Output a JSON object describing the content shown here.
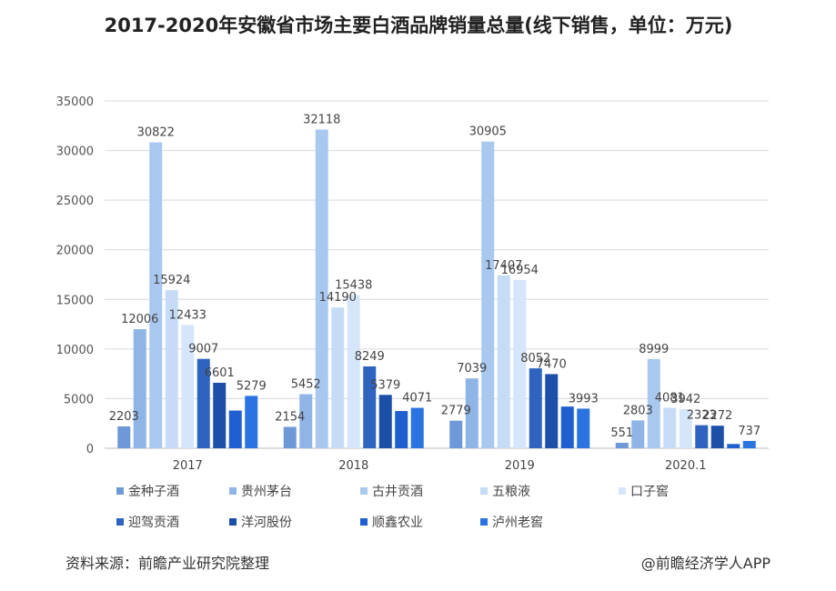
{
  "chart_data": {
    "type": "bar",
    "title": "2017-2020年安徽省市场主要白酒品牌销量总量(线下销售，单位：万元)",
    "categories": [
      "2017",
      "2018",
      "2019",
      "2020.1"
    ],
    "ylim": [
      0,
      35000
    ],
    "yticks": [
      0,
      5000,
      10000,
      15000,
      20000,
      25000,
      30000,
      35000
    ],
    "grid": true,
    "legend_position": "bottom",
    "series": [
      {
        "name": "金种子酒",
        "color": "#6e98d8",
        "values": [
          2203,
          2154,
          2779,
          551
        ],
        "labels": [
          "2203",
          "2154",
          "2779",
          "551"
        ]
      },
      {
        "name": "贵州茅台",
        "color": "#8fb4e6",
        "values": [
          12006,
          5452,
          7039,
          2803
        ],
        "labels": [
          "12006",
          "5452",
          "7039",
          "2803"
        ]
      },
      {
        "name": "古井贡酒",
        "color": "#a9c8f0",
        "values": [
          30822,
          32118,
          30905,
          8999
        ],
        "labels": [
          "30822",
          "32118",
          "30905",
          "8999"
        ]
      },
      {
        "name": "五粮液",
        "color": "#c6dcf6",
        "values": [
          15924,
          14190,
          17407,
          4081
        ],
        "labels": [
          "15924",
          "14190",
          "17407",
          "4081"
        ]
      },
      {
        "name": "口子窖",
        "color": "#d6e6fa",
        "values": [
          12433,
          15438,
          16954,
          3942
        ],
        "labels": [
          "12433",
          "15438",
          "16954",
          "3942"
        ]
      },
      {
        "name": "迎驾贡酒",
        "color": "#2e64c0",
        "values": [
          9007,
          8249,
          8052,
          2323
        ],
        "labels": [
          "9007",
          "8249",
          "8052",
          "2323"
        ]
      },
      {
        "name": "洋河股份",
        "color": "#1c4fa8",
        "values": [
          6601,
          5379,
          7470,
          2272
        ],
        "labels": [
          "6601",
          "5379",
          "7470",
          "2272"
        ]
      },
      {
        "name": "顺鑫农业",
        "color": "#1f5fd0",
        "values": [
          3800,
          3750,
          4200,
          430
        ],
        "labels": [
          "",
          "",
          "",
          ""
        ]
      },
      {
        "name": "泸州老窖",
        "color": "#2a73e0",
        "values": [
          5279,
          4071,
          3993,
          737
        ],
        "labels": [
          "5279",
          "4071",
          "3993",
          "737"
        ]
      }
    ]
  },
  "footer": {
    "source": "资料来源：前瞻产业研究院整理",
    "brand": "@前瞻经济学人APP"
  }
}
